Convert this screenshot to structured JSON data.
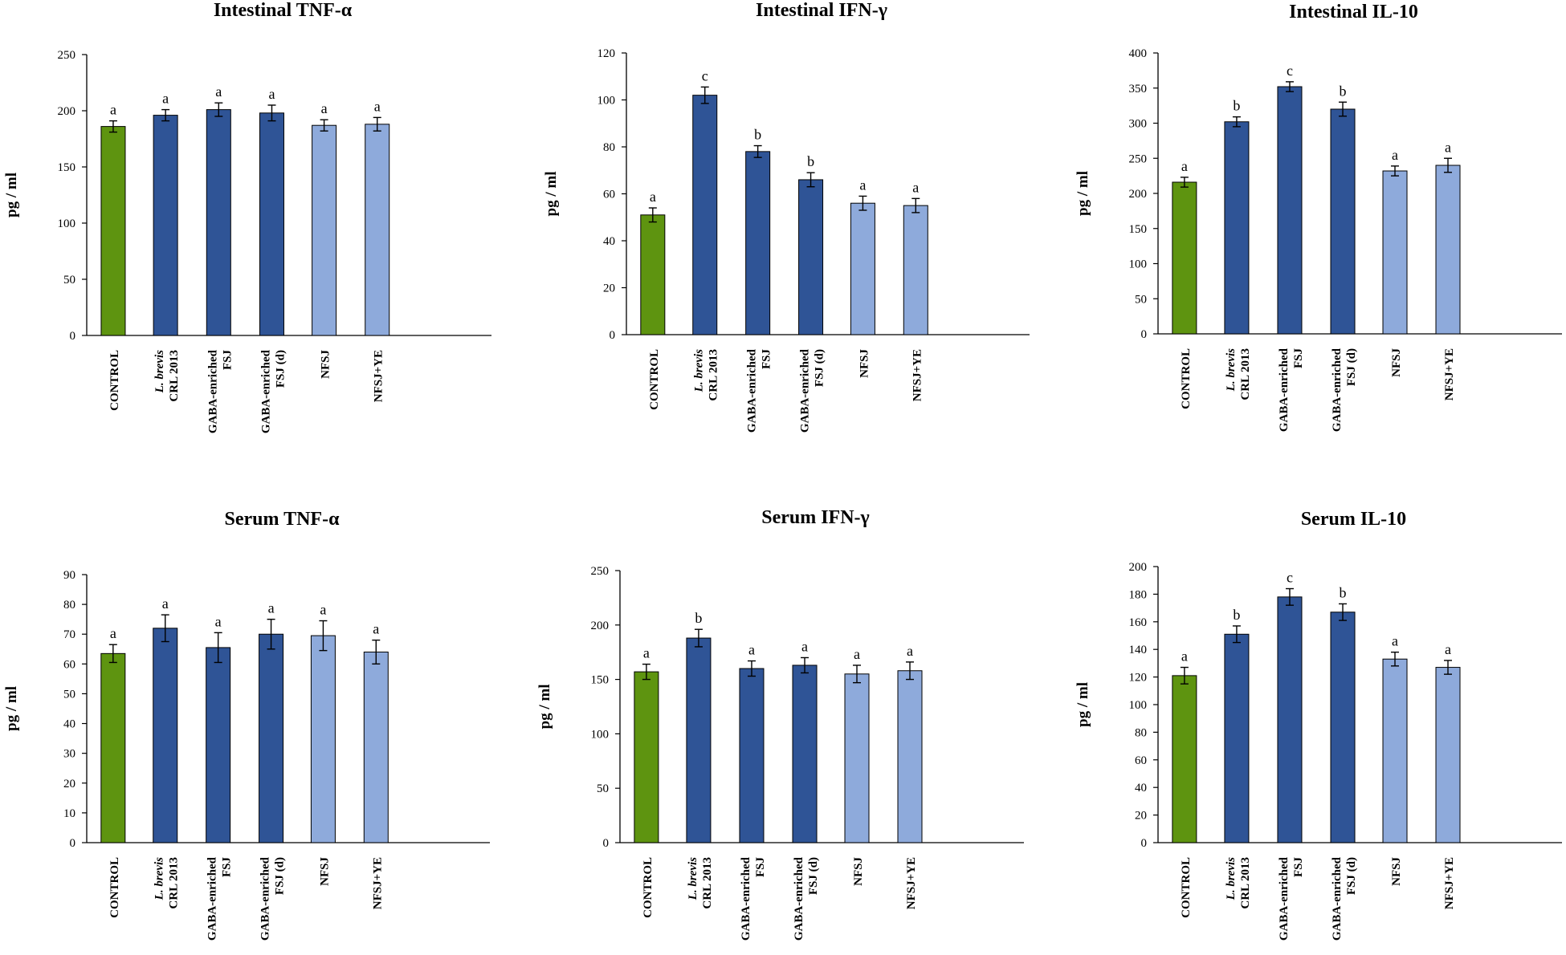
{
  "chart_data": [
    {
      "type": "bar",
      "title": "Intestinal TNF-α",
      "ylabel": "pg / ml",
      "ylim": [
        0,
        250
      ],
      "yticks": [
        "0",
        "50",
        "100",
        "150",
        "200",
        "250"
      ],
      "categories": [
        "CONTROL",
        "L. brevis CRL 2013",
        "GABA-enriched FSJ",
        "GABA-enriched FSJ (d)",
        "NFSJ",
        "NFSJ+YE"
      ],
      "values": [
        186,
        196,
        201,
        198,
        187,
        188
      ],
      "errors": [
        5,
        5,
        6,
        7,
        5,
        6
      ],
      "letters": [
        "a",
        "a",
        "a",
        "a",
        "a",
        "a"
      ]
    },
    {
      "type": "bar",
      "title": "Intestinal IFN-γ",
      "ylabel": "pg / ml",
      "ylim": [
        0,
        120
      ],
      "yticks": [
        "0",
        "20",
        "40",
        "60",
        "80",
        "100",
        "120"
      ],
      "categories": [
        "CONTROL",
        "L. brevis CRL 2013",
        "GABA-enriched FSJ",
        "GABA-enriched FSJ (d)",
        "NFSJ",
        "NFSJ+YE"
      ],
      "values": [
        51,
        102,
        78,
        66,
        56,
        55
      ],
      "errors": [
        3,
        3.5,
        2.5,
        3,
        3,
        3
      ],
      "letters": [
        "a",
        "c",
        "b",
        "b",
        "a",
        "a"
      ]
    },
    {
      "type": "bar",
      "title": "Intestinal IL-10",
      "ylabel": "pg / ml",
      "ylim": [
        0,
        400
      ],
      "yticks": [
        "0",
        "50",
        "100",
        "150",
        "200",
        "250",
        "300",
        "350",
        "400"
      ],
      "categories": [
        "CONTROL",
        "L. brevis CRL 2013",
        "GABA-enriched FSJ",
        "GABA-enriched FSJ (d)",
        "NFSJ",
        "NFSJ+YE"
      ],
      "values": [
        216,
        302,
        352,
        320,
        232,
        240
      ],
      "errors": [
        7,
        7,
        7,
        10,
        7,
        10
      ],
      "letters": [
        "a",
        "b",
        "c",
        "b",
        "a",
        "a"
      ]
    },
    {
      "type": "bar",
      "title": "Serum TNF-α",
      "ylabel": "pg / ml",
      "ylim": [
        0,
        90
      ],
      "yticks": [
        "0",
        "10",
        "20",
        "30",
        "40",
        "50",
        "60",
        "70",
        "80",
        "90"
      ],
      "categories": [
        "CONTROL",
        "L. brevis CRL 2013",
        "GABA-enriched FSJ",
        "GABA-enriched FSJ (d)",
        "NFSJ",
        "NFSJ+YE"
      ],
      "values": [
        63.5,
        72,
        65.5,
        70,
        69.5,
        64
      ],
      "errors": [
        3,
        4.5,
        5,
        5,
        5,
        4
      ],
      "letters": [
        "a",
        "a",
        "a",
        "a",
        "a",
        "a"
      ]
    },
    {
      "type": "bar",
      "title": "Serum IFN-γ",
      "ylabel": "pg / ml",
      "ylim": [
        0,
        250
      ],
      "yticks": [
        "0",
        "50",
        "100",
        "150",
        "200",
        "250"
      ],
      "categories": [
        "CONTROL",
        "L. brevis CRL 2013",
        "GABA-enriched FSJ",
        "GABA-enriched FSJ (d)",
        "NFSJ",
        "NFSJ+YE"
      ],
      "values": [
        157,
        188,
        160,
        163,
        155,
        158
      ],
      "errors": [
        7,
        8,
        7,
        7,
        8,
        8
      ],
      "letters": [
        "a",
        "b",
        "a",
        "a",
        "a",
        "a"
      ]
    },
    {
      "type": "bar",
      "title": "Serum IL-10",
      "ylabel": "pg / ml",
      "ylim": [
        0,
        200
      ],
      "yticks": [
        "0",
        "20",
        "40",
        "60",
        "80",
        "100",
        "120",
        "140",
        "160",
        "180",
        "200"
      ],
      "categories": [
        "CONTROL",
        "L. brevis CRL 2013",
        "GABA-enriched FSJ",
        "GABA-enriched FSJ (d)",
        "NFSJ",
        "NFSJ+YE"
      ],
      "values": [
        121,
        151,
        178,
        167,
        133,
        127
      ],
      "errors": [
        6,
        6,
        6,
        6,
        5,
        5
      ],
      "letters": [
        "a",
        "b",
        "c",
        "b",
        "a",
        "a"
      ]
    }
  ],
  "colors": {
    "control": "#5e9410",
    "dark_blue": "#2f5496",
    "light_blue": "#8eaadb",
    "axis": "#000000"
  }
}
